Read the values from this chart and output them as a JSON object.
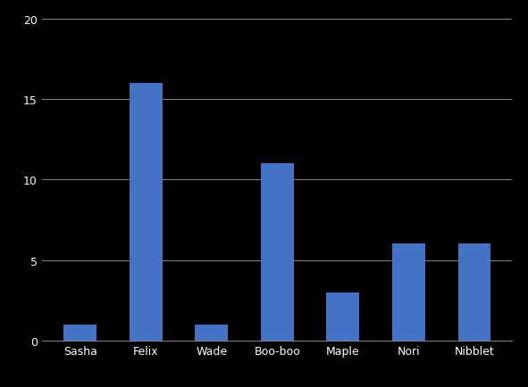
{
  "categories": [
    "Sasha",
    "Felix",
    "Wade",
    "Boo-boo",
    "Maple",
    "Nori",
    "Nibblet"
  ],
  "values": [
    1,
    16,
    1,
    11,
    3,
    6,
    6
  ],
  "bar_color": "#4472C4",
  "background_color": "#000000",
  "plot_bg_color": "#000000",
  "grid_color": "#888888",
  "tick_color": "#ffffff",
  "ylim": [
    0,
    20
  ],
  "yticks": [
    0,
    5,
    10,
    15,
    20
  ],
  "bar_width": 0.5,
  "figsize": [
    5.91,
    4.35
  ],
  "dpi": 100
}
